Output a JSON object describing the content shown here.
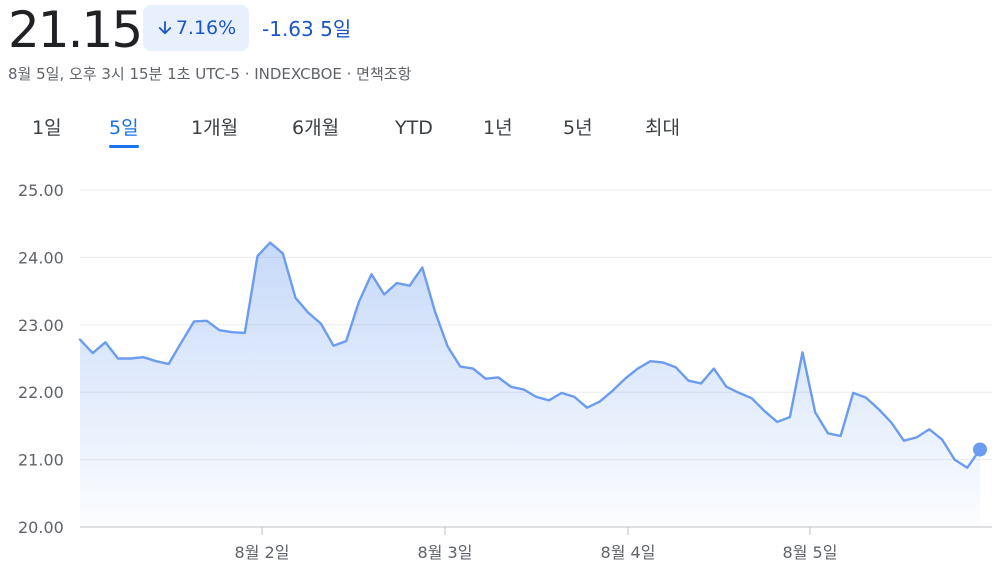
{
  "quote": {
    "price": "21.15",
    "change_percent": "7.16%",
    "change_absolute": "-1.63",
    "change_period": "5일",
    "arrow_icon": "arrow-down-icon",
    "meta": "8월 5일, 오후 3시 15분 1초 UTC-5 · INDEXCBOE · 면책조항",
    "down_color": "#1a56c8"
  },
  "tabs": [
    {
      "label": "1일"
    },
    {
      "label": "5일",
      "active": true
    },
    {
      "label": "1개월"
    },
    {
      "label": "6개월"
    },
    {
      "label": "YTD"
    },
    {
      "label": "1년"
    },
    {
      "label": "5년"
    },
    {
      "label": "최대"
    }
  ],
  "chart_data": {
    "type": "area",
    "line_color": "#6b9cef",
    "grid": true,
    "ylim": [
      20,
      25
    ],
    "y_ticks": [
      "25.00",
      "24.00",
      "23.00",
      "22.00",
      "21.00",
      "20.00"
    ],
    "x_ticks": [
      "8월 2일",
      "8월 3일",
      "8월 4일",
      "8월 5일"
    ],
    "values": [
      22.78,
      22.58,
      22.74,
      22.5,
      22.5,
      22.52,
      22.46,
      22.42,
      22.74,
      23.05,
      23.06,
      22.92,
      22.89,
      22.88,
      24.02,
      24.22,
      24.06,
      23.4,
      23.18,
      23.02,
      22.69,
      22.76,
      23.34,
      23.75,
      23.45,
      23.62,
      23.58,
      23.85,
      23.2,
      22.68,
      22.38,
      22.35,
      22.2,
      22.22,
      22.08,
      22.04,
      21.93,
      21.88,
      21.99,
      21.93,
      21.77,
      21.86,
      22.02,
      22.2,
      22.35,
      22.46,
      22.44,
      22.37,
      22.17,
      22.13,
      22.35,
      22.08,
      21.99,
      21.91,
      21.72,
      21.56,
      21.63,
      22.59,
      21.7,
      21.39,
      21.35,
      21.99,
      21.92,
      21.75,
      21.55,
      21.28,
      21.33,
      21.45,
      21.3,
      21.0,
      20.88,
      21.15
    ]
  }
}
